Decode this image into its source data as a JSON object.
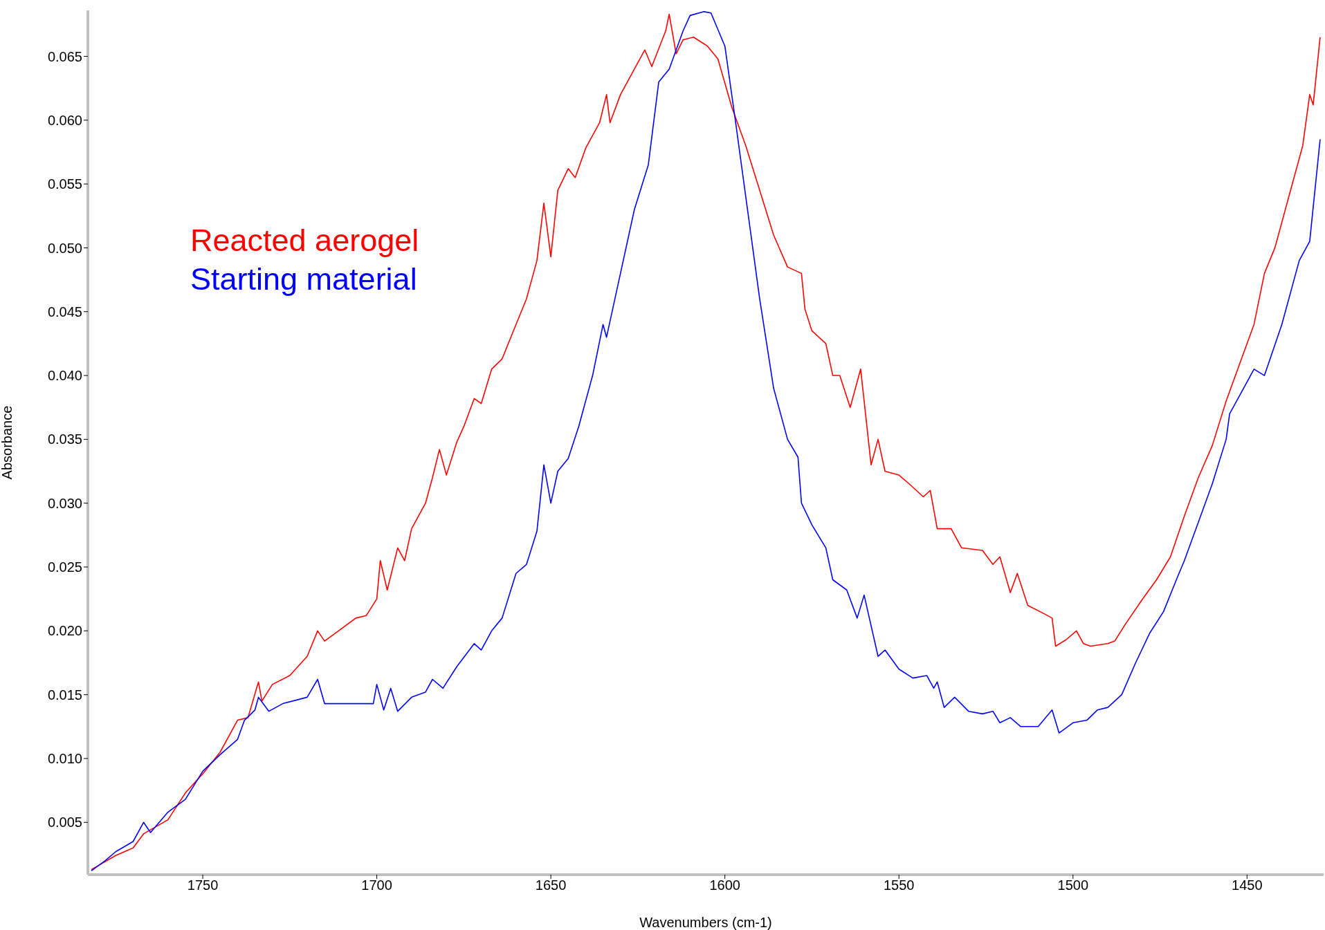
{
  "chart_data": {
    "type": "line",
    "xlabel": "Wavenumbers (cm-1)",
    "ylabel": "Absorbance",
    "xlim": [
      1783,
      1428
    ],
    "ylim": [
      0.0009,
      0.0686
    ],
    "xticks": [
      1750,
      1700,
      1650,
      1600,
      1550,
      1500,
      1450
    ],
    "yticks": [
      0.005,
      {
        "value": 0.01,
        "label": "0.010"
      },
      0.015,
      {
        "value": 0.02,
        "label": "0.020"
      },
      0.025,
      {
        "value": 0.03,
        "label": "0.030"
      },
      0.035,
      {
        "value": 0.04,
        "label": "0.040"
      },
      0.045,
      {
        "value": 0.05,
        "label": "0.050"
      },
      0.055,
      {
        "value": 0.06,
        "label": "0.060"
      },
      0.065
    ],
    "legend": "top left",
    "marker": "none",
    "line_style": "solid",
    "series": [
      {
        "name": "Reacted aerogel",
        "color": "#ff0000",
        "x": [
          1782,
          1775,
          1770,
          1767,
          1760,
          1755,
          1750,
          1745,
          1740,
          1737,
          1734,
          1733,
          1730,
          1725,
          1720,
          1717,
          1715,
          1712,
          1706,
          1703,
          1700,
          1699,
          1697,
          1694,
          1692,
          1690,
          1686,
          1684,
          1682,
          1680,
          1677,
          1675,
          1672,
          1670,
          1667,
          1664,
          1660,
          1657,
          1654,
          1652,
          1650,
          1648,
          1645,
          1643,
          1640,
          1636,
          1634,
          1633,
          1630,
          1626,
          1623,
          1621,
          1617,
          1616,
          1614,
          1612,
          1609,
          1605,
          1602,
          1598,
          1594,
          1590,
          1586,
          1582,
          1578,
          1577,
          1575,
          1571,
          1569,
          1567,
          1564,
          1561,
          1558,
          1556,
          1554,
          1550,
          1547,
          1543,
          1541,
          1539,
          1535,
          1532,
          1526,
          1523,
          1521,
          1518,
          1516,
          1513,
          1508,
          1506,
          1505,
          1502,
          1499,
          1497,
          1495,
          1490,
          1488,
          1485,
          1480,
          1476,
          1472,
          1468,
          1464,
          1460,
          1456,
          1452,
          1448,
          1445,
          1442,
          1438,
          1434,
          1432,
          1431,
          1429
        ],
        "values": [
          0.0013,
          0.0024,
          0.003,
          0.0041,
          0.0052,
          0.0073,
          0.0088,
          0.0105,
          0.013,
          0.0132,
          0.016,
          0.0145,
          0.0158,
          0.0165,
          0.018,
          0.02,
          0.0192,
          0.0198,
          0.021,
          0.0212,
          0.0225,
          0.0255,
          0.0232,
          0.0265,
          0.0255,
          0.028,
          0.03,
          0.032,
          0.0342,
          0.0322,
          0.0348,
          0.036,
          0.0382,
          0.0378,
          0.0405,
          0.0413,
          0.044,
          0.046,
          0.049,
          0.0535,
          0.0493,
          0.0545,
          0.0562,
          0.0555,
          0.0578,
          0.0598,
          0.062,
          0.0598,
          0.062,
          0.064,
          0.0655,
          0.0642,
          0.067,
          0.0683,
          0.0652,
          0.0663,
          0.0665,
          0.0658,
          0.0648,
          0.061,
          0.058,
          0.0545,
          0.051,
          0.0485,
          0.048,
          0.0452,
          0.0435,
          0.0425,
          0.04,
          0.04,
          0.0375,
          0.0405,
          0.033,
          0.035,
          0.0325,
          0.0322,
          0.0315,
          0.0305,
          0.031,
          0.028,
          0.028,
          0.0265,
          0.0263,
          0.0252,
          0.0258,
          0.023,
          0.0245,
          0.022,
          0.0213,
          0.021,
          0.0188,
          0.0193,
          0.02,
          0.019,
          0.0188,
          0.019,
          0.0192,
          0.0205,
          0.0225,
          0.024,
          0.0258,
          0.029,
          0.032,
          0.0345,
          0.038,
          0.041,
          0.044,
          0.048,
          0.05,
          0.054,
          0.058,
          0.062,
          0.0612,
          0.0665
        ]
      },
      {
        "name": "Starting material",
        "color": "#0000ff",
        "x": [
          1782,
          1778,
          1775,
          1770,
          1767,
          1765,
          1760,
          1755,
          1750,
          1745,
          1740,
          1738,
          1735,
          1734,
          1731,
          1727,
          1720,
          1717,
          1715,
          1711,
          1706,
          1701,
          1700,
          1698,
          1696,
          1694,
          1690,
          1686,
          1684,
          1681,
          1677,
          1672,
          1670,
          1667,
          1664,
          1660,
          1657,
          1654,
          1652,
          1650,
          1648,
          1645,
          1642,
          1638,
          1635,
          1634,
          1630,
          1626,
          1622,
          1619,
          1616,
          1612,
          1610,
          1606,
          1604,
          1600,
          1597,
          1594,
          1590,
          1586,
          1582,
          1579,
          1578,
          1575,
          1571,
          1569,
          1565,
          1562,
          1560,
          1556,
          1554,
          1550,
          1546,
          1542,
          1540,
          1539,
          1537,
          1534,
          1530,
          1526,
          1523,
          1521,
          1518,
          1515,
          1510,
          1506,
          1504,
          1500,
          1496,
          1493,
          1490,
          1486,
          1482,
          1478,
          1474,
          1470,
          1468,
          1464,
          1460,
          1456,
          1455,
          1452,
          1448,
          1445,
          1440,
          1435,
          1432,
          1429
        ],
        "values": [
          0.0012,
          0.002,
          0.0027,
          0.0035,
          0.005,
          0.0042,
          0.0058,
          0.0068,
          0.009,
          0.0103,
          0.0115,
          0.013,
          0.0138,
          0.0148,
          0.0137,
          0.0143,
          0.0148,
          0.0162,
          0.0143,
          0.0143,
          0.0143,
          0.0143,
          0.0158,
          0.0138,
          0.0155,
          0.0137,
          0.0148,
          0.0152,
          0.0162,
          0.0155,
          0.0172,
          0.019,
          0.0185,
          0.02,
          0.021,
          0.0245,
          0.0252,
          0.0278,
          0.033,
          0.03,
          0.0325,
          0.0335,
          0.036,
          0.04,
          0.044,
          0.043,
          0.048,
          0.053,
          0.0565,
          0.063,
          0.064,
          0.067,
          0.0682,
          0.0685,
          0.0684,
          0.0658,
          0.06,
          0.054,
          0.046,
          0.039,
          0.035,
          0.0336,
          0.03,
          0.0283,
          0.0265,
          0.024,
          0.0232,
          0.021,
          0.0228,
          0.018,
          0.0185,
          0.017,
          0.0163,
          0.0165,
          0.0155,
          0.016,
          0.014,
          0.0148,
          0.0137,
          0.0135,
          0.0137,
          0.0128,
          0.0132,
          0.0125,
          0.0125,
          0.0138,
          0.012,
          0.0128,
          0.013,
          0.0138,
          0.014,
          0.015,
          0.0175,
          0.0198,
          0.0215,
          0.0242,
          0.0255,
          0.0285,
          0.0315,
          0.035,
          0.037,
          0.0385,
          0.0405,
          0.04,
          0.044,
          0.049,
          0.0505,
          0.0585
        ]
      }
    ]
  }
}
